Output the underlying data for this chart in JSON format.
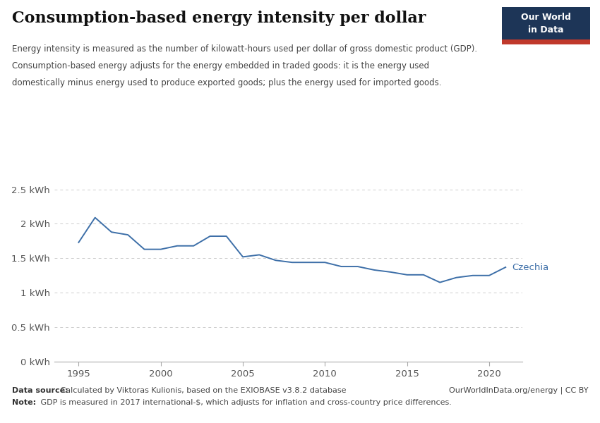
{
  "title": "Consumption-based energy intensity per dollar",
  "subtitle_lines": [
    "Energy intensity is measured as the number of kilowatt-hours used per dollar of gross domestic product (GDP).",
    "Consumption-based energy adjusts for the energy embedded in traded goods: it is the energy used",
    "domestically minus energy used to produce exported goods; plus the energy used for imported goods."
  ],
  "years": [
    1995,
    1996,
    1997,
    1998,
    1999,
    2000,
    2001,
    2002,
    2003,
    2004,
    2005,
    2006,
    2007,
    2008,
    2009,
    2010,
    2011,
    2012,
    2013,
    2014,
    2015,
    2016,
    2017,
    2018,
    2019,
    2020,
    2021
  ],
  "values": [
    1.73,
    2.09,
    1.88,
    1.84,
    1.63,
    1.63,
    1.68,
    1.68,
    1.82,
    1.82,
    1.52,
    1.55,
    1.47,
    1.44,
    1.44,
    1.44,
    1.38,
    1.38,
    1.33,
    1.3,
    1.26,
    1.26,
    1.15,
    1.22,
    1.25,
    1.25,
    1.37
  ],
  "line_color": "#3d6fa8",
  "label": "Czechia",
  "label_color": "#3d6fa8",
  "yticks": [
    0,
    0.5,
    1.0,
    1.5,
    2.0,
    2.5
  ],
  "ytick_labels": [
    "0 kWh",
    "0.5 kWh",
    "1 kWh",
    "1.5 kWh",
    "2 kWh",
    "2.5 kWh"
  ],
  "xticks": [
    1995,
    2000,
    2005,
    2010,
    2015,
    2020
  ],
  "ylim": [
    0,
    2.7
  ],
  "xlim": [
    1993.5,
    2022.0
  ],
  "source_bold": "Data source:",
  "source_text": " Calculated by Viktoras Kulionis, based on the EXIOBASE v3.8.2 database",
  "source_right": "OurWorldInData.org/energy | CC BY",
  "note_bold": "Note:",
  "note_text": " GDP is measured in 2017 international-$, which adjusts for inflation and cross-country price differences.",
  "background_color": "#ffffff",
  "grid_color": "#cccccc",
  "logo_bg_color": "#1d3557",
  "logo_stripe_color": "#c0392b",
  "logo_text1": "Our World",
  "logo_text2": "in Data"
}
